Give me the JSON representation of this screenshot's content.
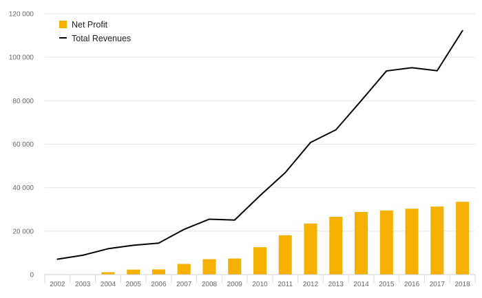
{
  "chart_data": {
    "type": "bar",
    "title": "",
    "xlabel": "",
    "ylabel": "",
    "categories": [
      "2002",
      "2003",
      "2004",
      "2005",
      "2006",
      "2007",
      "2008",
      "2009",
      "2010",
      "2011",
      "2012",
      "2013",
      "2014",
      "2015",
      "2016",
      "2017",
      "2018"
    ],
    "ylim": [
      0,
      120000
    ],
    "yticks": [
      0,
      20000,
      40000,
      60000,
      80000,
      100000,
      120000
    ],
    "ytick_labels": [
      "0",
      "20 000",
      "40 000",
      "60 000",
      "80 000",
      "100 000",
      "120 000"
    ],
    "grid": true,
    "legend_position": "top-left",
    "series": [
      {
        "name": "Net Profit",
        "kind": "bar",
        "color": "#f6b000",
        "values": [
          0,
          0,
          1100,
          2300,
          2400,
          4900,
          7100,
          7400,
          12600,
          18100,
          23500,
          26600,
          28800,
          29500,
          30300,
          31300,
          33500
        ]
      },
      {
        "name": "Total Revenues",
        "kind": "line",
        "color": "#000000",
        "values": [
          7100,
          8900,
          11900,
          13500,
          14500,
          20800,
          25500,
          25100,
          36300,
          46900,
          60800,
          66600,
          80000,
          93700,
          95200,
          93800,
          112200
        ]
      }
    ]
  }
}
